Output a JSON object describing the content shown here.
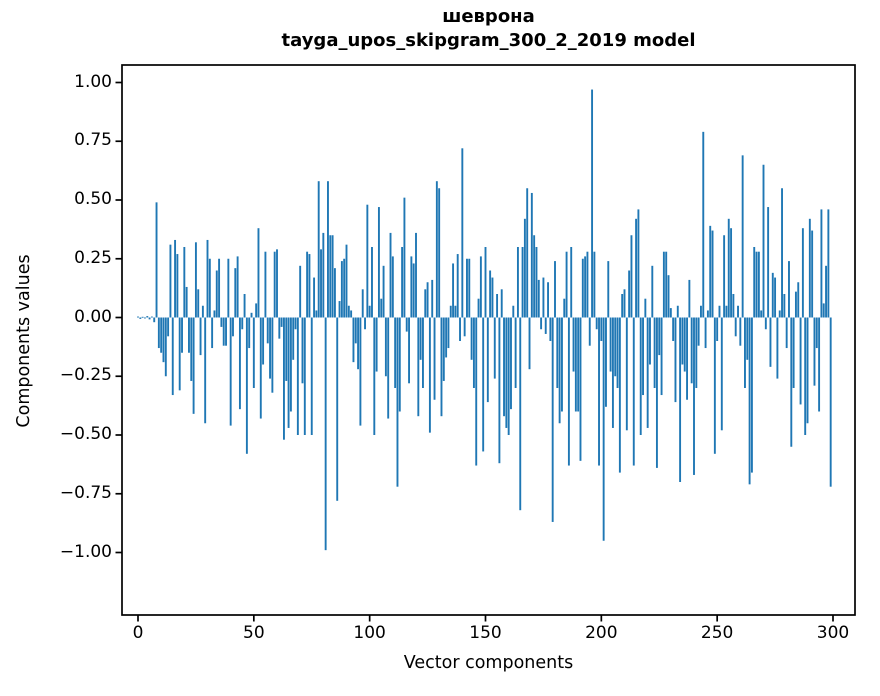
{
  "title": {
    "line1": "шеврона",
    "line2": "tayga_upos_skipgram_300_2_2019 model"
  },
  "axes": {
    "xlabel": "Vector components",
    "ylabel": "Components values",
    "x_tick_labels": [
      "0",
      "50",
      "100",
      "150",
      "200",
      "250",
      "300"
    ],
    "x_tick_values": [
      0,
      50,
      100,
      150,
      200,
      250,
      300
    ],
    "y_tick_labels": [
      "1.00",
      "0.75",
      "0.50",
      "0.25",
      "0.00",
      "−0.25",
      "−0.50",
      "−0.75",
      "−1.00"
    ],
    "y_tick_values": [
      1.0,
      0.75,
      0.5,
      0.25,
      0.0,
      -0.25,
      -0.5,
      -0.75,
      -1.0
    ]
  },
  "chart_data": {
    "type": "bar",
    "title": "шеврона",
    "subtitle": "tayga_upos_skipgram_300_2_2019 model",
    "xlabel": "Vector components",
    "ylabel": "Components values",
    "n_components": 300,
    "xlim": [
      -15,
      315
    ],
    "ylim": [
      -1.27,
      1.08
    ],
    "grid": false,
    "legend": null,
    "bar_color": "#1f77b4",
    "spine_color": "#000000",
    "values": [
      0.004,
      -0.006,
      0.003,
      -0.004,
      0.006,
      -0.008,
      0.004,
      -0.02,
      0.49,
      -0.13,
      -0.15,
      -0.19,
      -0.25,
      -0.08,
      0.31,
      -0.33,
      0.33,
      0.27,
      -0.31,
      -0.15,
      0.3,
      0.13,
      -0.15,
      -0.27,
      -0.41,
      0.32,
      0.12,
      -0.16,
      0.05,
      -0.45,
      0.33,
      0.25,
      -0.13,
      0.03,
      0.2,
      0.25,
      -0.04,
      -0.12,
      -0.12,
      0.25,
      -0.46,
      -0.08,
      0.21,
      0.26,
      -0.39,
      -0.05,
      0.1,
      -0.58,
      -0.13,
      0.02,
      -0.3,
      0.06,
      0.38,
      -0.43,
      -0.2,
      0.28,
      -0.11,
      -0.26,
      -0.32,
      0.28,
      0.29,
      -0.09,
      -0.04,
      -0.52,
      -0.27,
      -0.47,
      -0.4,
      -0.18,
      -0.05,
      -0.5,
      0.22,
      -0.28,
      -0.5,
      0.28,
      0.27,
      -0.5,
      0.17,
      0.03,
      0.58,
      0.29,
      0.36,
      -0.99,
      0.58,
      0.35,
      0.35,
      0.21,
      -0.78,
      0.07,
      0.24,
      0.25,
      0.31,
      0.05,
      0.03,
      -0.19,
      -0.11,
      -0.22,
      -0.46,
      0.12,
      -0.05,
      0.48,
      0.05,
      0.3,
      -0.5,
      -0.23,
      0.47,
      0.08,
      0.22,
      -0.25,
      -0.43,
      0.36,
      0.26,
      -0.3,
      -0.72,
      -0.4,
      0.3,
      0.51,
      -0.06,
      -0.28,
      0.26,
      0.23,
      0.36,
      -0.42,
      -0.18,
      -0.3,
      0.12,
      0.15,
      -0.49,
      0.16,
      -0.35,
      0.58,
      0.55,
      -0.42,
      -0.27,
      -0.17,
      -0.13,
      0.05,
      0.23,
      0.05,
      0.27,
      -0.1,
      0.72,
      -0.08,
      0.25,
      0.25,
      -0.18,
      -0.3,
      -0.63,
      0.08,
      0.26,
      -0.57,
      0.3,
      -0.36,
      0.2,
      0.17,
      -0.26,
      0.1,
      -0.62,
      0.12,
      -0.42,
      -0.47,
      -0.5,
      -0.39,
      0.05,
      -0.3,
      0.3,
      -0.82,
      0.3,
      0.42,
      0.55,
      -0.22,
      0.53,
      0.35,
      0.3,
      0.16,
      -0.05,
      0.17,
      -0.07,
      0.15,
      -0.1,
      -0.87,
      0.24,
      -0.3,
      -0.45,
      -0.4,
      0.08,
      0.28,
      -0.63,
      0.3,
      -0.23,
      -0.4,
      -0.4,
      -0.61,
      0.25,
      0.26,
      0.28,
      -0.12,
      0.97,
      0.28,
      -0.05,
      -0.63,
      -0.1,
      -0.95,
      -0.38,
      0.24,
      -0.23,
      -0.47,
      -0.25,
      -0.3,
      -0.66,
      0.1,
      0.12,
      -0.48,
      0.2,
      0.35,
      -0.63,
      0.42,
      0.46,
      -0.5,
      -0.33,
      0.08,
      -0.47,
      -0.2,
      0.22,
      -0.3,
      -0.64,
      -0.16,
      -0.33,
      0.28,
      0.28,
      0.18,
      0.04,
      -0.1,
      -0.36,
      0.05,
      -0.7,
      -0.2,
      -0.23,
      -0.35,
      0.16,
      -0.28,
      -0.67,
      -0.3,
      -0.12,
      0.05,
      0.79,
      -0.13,
      0.03,
      0.39,
      0.37,
      -0.58,
      -0.1,
      0.05,
      -0.48,
      0.35,
      0.05,
      0.42,
      0.38,
      0.1,
      -0.08,
      0.05,
      -0.12,
      0.69,
      -0.3,
      -0.18,
      -0.71,
      -0.66,
      0.3,
      0.28,
      0.28,
      0.03,
      0.65,
      -0.05,
      0.47,
      -0.21,
      0.19,
      0.17,
      -0.26,
      0.03,
      0.55,
      0.1,
      -0.13,
      0.24,
      -0.55,
      -0.3,
      0.11,
      0.15,
      -0.37,
      0.38,
      -0.5,
      -0.45,
      0.42,
      0.37,
      -0.29,
      -0.13,
      -0.4,
      0.46,
      0.06,
      0.22,
      0.46,
      -0.72
    ]
  }
}
